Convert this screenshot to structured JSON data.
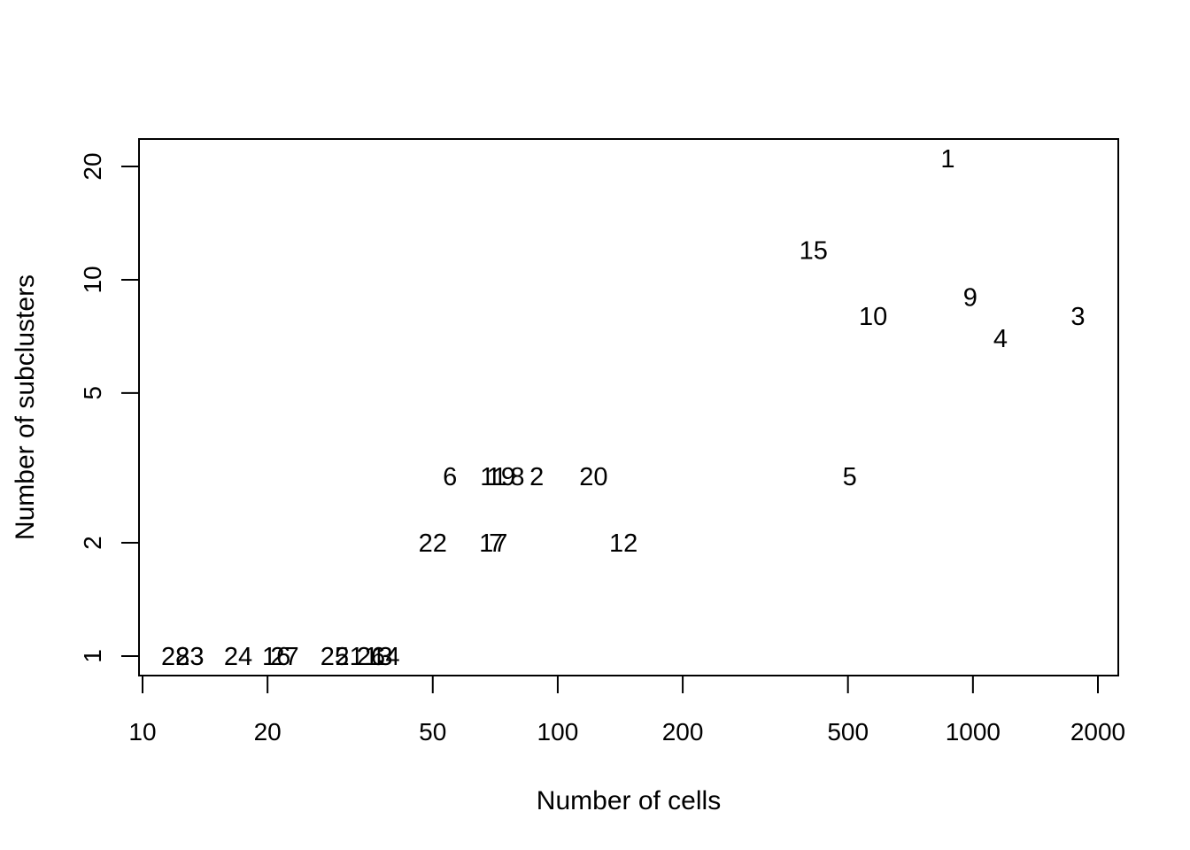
{
  "chart_data": {
    "type": "scatter",
    "marker": "text-labels",
    "xlabel": "Number of cells",
    "ylabel": "Number of subclusters",
    "x_scale": "log",
    "y_scale": "log",
    "xlim": [
      10,
      2000
    ],
    "ylim": [
      1,
      20
    ],
    "grid": false,
    "legend": "none",
    "x_ticks": [
      {
        "value": 10,
        "label": "10"
      },
      {
        "value": 20,
        "label": "20"
      },
      {
        "value": 50,
        "label": "50"
      },
      {
        "value": 100,
        "label": "100"
      },
      {
        "value": 200,
        "label": "200"
      },
      {
        "value": 500,
        "label": "500"
      },
      {
        "value": 1000,
        "label": "1000"
      },
      {
        "value": 2000,
        "label": "2000"
      }
    ],
    "y_ticks": [
      {
        "value": 1,
        "label": "1"
      },
      {
        "value": 2,
        "label": "2"
      },
      {
        "value": 5,
        "label": "5"
      },
      {
        "value": 10,
        "label": "10"
      },
      {
        "value": 20,
        "label": "20"
      }
    ],
    "points": [
      {
        "label": "1",
        "x": 870,
        "y": 21
      },
      {
        "label": "15",
        "x": 413,
        "y": 12
      },
      {
        "label": "9",
        "x": 985,
        "y": 9
      },
      {
        "label": "10",
        "x": 575,
        "y": 8
      },
      {
        "label": "3",
        "x": 1790,
        "y": 8
      },
      {
        "label": "4",
        "x": 1165,
        "y": 7
      },
      {
        "label": "5",
        "x": 505,
        "y": 3
      },
      {
        "label": "6",
        "x": 55,
        "y": 3
      },
      {
        "label": "11",
        "x": 70,
        "y": 3
      },
      {
        "label": "19",
        "x": 73,
        "y": 3
      },
      {
        "label": "8",
        "x": 80,
        "y": 3
      },
      {
        "label": "2",
        "x": 89,
        "y": 3
      },
      {
        "label": "20",
        "x": 122,
        "y": 3
      },
      {
        "label": "22",
        "x": 50,
        "y": 2
      },
      {
        "label": "17",
        "x": 70,
        "y": 2
      },
      {
        "label": "7",
        "x": 71,
        "y": 2
      },
      {
        "label": "12",
        "x": 144,
        "y": 2
      },
      {
        "label": "28",
        "x": 12,
        "y": 1
      },
      {
        "label": "23",
        "x": 13,
        "y": 1
      },
      {
        "label": "24",
        "x": 17,
        "y": 1
      },
      {
        "label": "16",
        "x": 21,
        "y": 1
      },
      {
        "label": "27",
        "x": 22,
        "y": 1
      },
      {
        "label": "25",
        "x": 29,
        "y": 1
      },
      {
        "label": "21",
        "x": 31.5,
        "y": 1
      },
      {
        "label": "26",
        "x": 35.5,
        "y": 1
      },
      {
        "label": "13",
        "x": 37,
        "y": 1
      },
      {
        "label": "14",
        "x": 38.5,
        "y": 1
      }
    ]
  }
}
